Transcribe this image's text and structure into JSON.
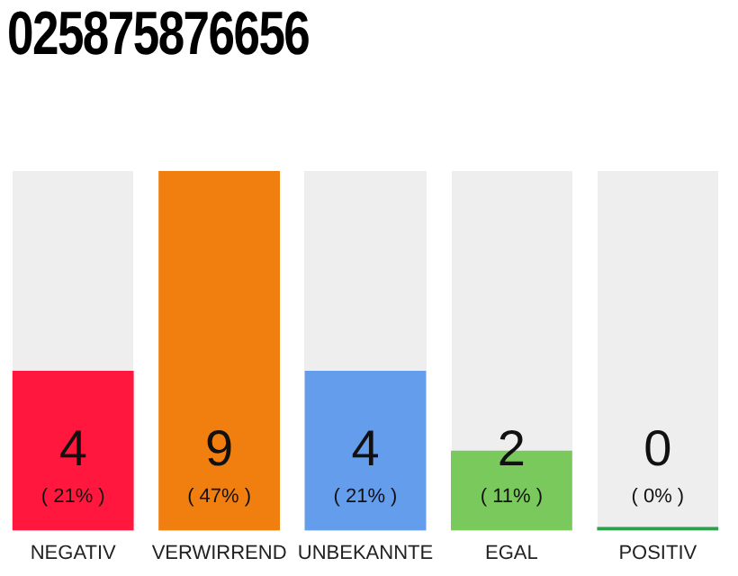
{
  "chart_data": {
    "type": "bar",
    "title": "025875876656",
    "categories": [
      "NEGATIV",
      "VERWIRREND",
      "UNBEKANNTE",
      "EGAL",
      "POSITIV"
    ],
    "values": [
      4,
      9,
      4,
      2,
      0
    ],
    "colors": [
      "#ff173d",
      "#f07f0f",
      "#659ded",
      "#7ac95c",
      "#2e9e4f"
    ],
    "data_labels": true,
    "tick_labels": "x",
    "grid": false,
    "legend": false,
    "annotations": [
      "( 21% )",
      "( 47% )",
      "( 21% )",
      "( 11% )",
      "( 0% )"
    ]
  }
}
